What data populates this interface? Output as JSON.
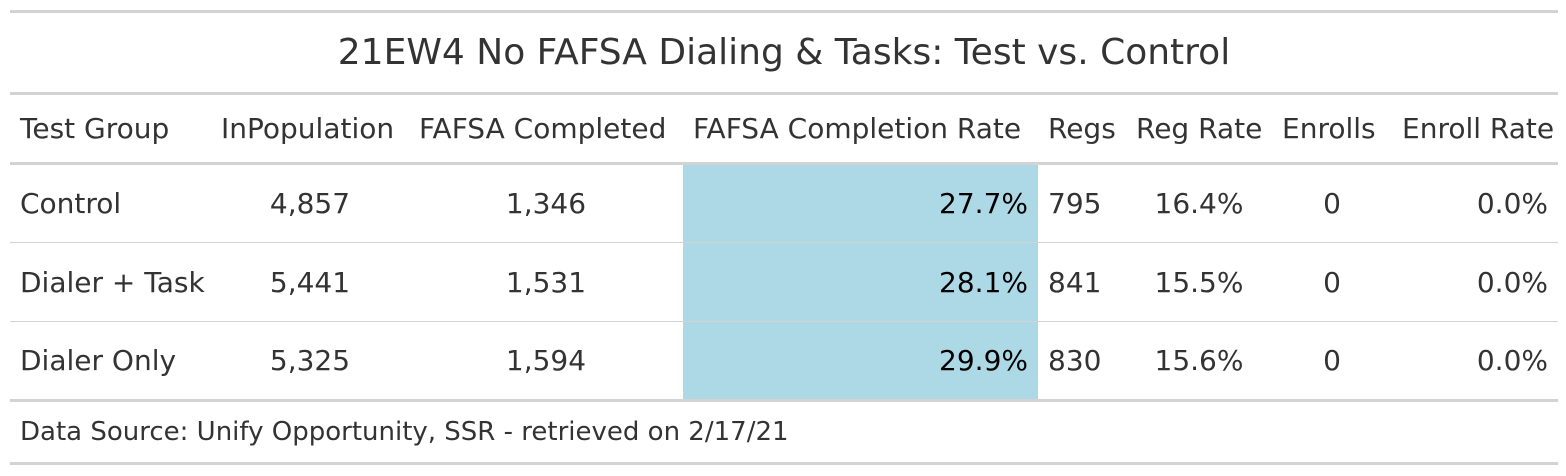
{
  "chart_data": {
    "type": "table",
    "title": "21EW4 No FAFSA Dialing & Tasks: Test vs. Control",
    "columns": [
      "Test Group",
      "InPopulation",
      "FAFSA Completed",
      "FAFSA Completion Rate",
      "Regs",
      "Reg Rate",
      "Enrolls",
      "Enroll Rate"
    ],
    "rows": [
      [
        "Control",
        "4,857",
        "1,346",
        "27.7%",
        "795",
        "16.4%",
        "0",
        "0.0%"
      ],
      [
        "Dialer + Task",
        "5,441",
        "1,531",
        "28.1%",
        "841",
        "15.5%",
        "0",
        "0.0%"
      ],
      [
        "Dialer Only",
        "5,325",
        "1,594",
        "29.9%",
        "830",
        "15.6%",
        "0",
        "0.0%"
      ]
    ],
    "highlight_column": "FAFSA Completion Rate",
    "highlight_color": "#add8e6",
    "source_note": "Data Source: Unify Opportunity, SSR - retrieved on 2/17/21"
  }
}
